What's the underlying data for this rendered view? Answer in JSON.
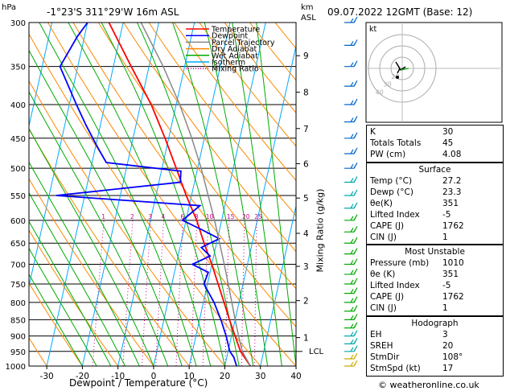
{
  "header": {
    "pressure_unit": "hPa",
    "location": "-1°23'S 311°29'W 16m ASL",
    "km_label": "km",
    "asl_label": "ASL",
    "datetime": "09.07.2022 12GMT (Base: 12)",
    "mixing_ratio_axis": "Mixing Ratio (g/kg)",
    "xlabel": "Dewpoint / Temperature (°C)",
    "lcl": "LCL",
    "footer": "© weatheronline.co.uk"
  },
  "legend": {
    "items": [
      {
        "label": "Temperature",
        "color": "#ff0000",
        "dash": "solid"
      },
      {
        "label": "Dewpoint",
        "color": "#0000ff",
        "dash": "solid"
      },
      {
        "label": "Parcel Trajectory",
        "color": "#888888",
        "dash": "solid"
      },
      {
        "label": "Dry Adiabat",
        "color": "#ff8800",
        "dash": "solid"
      },
      {
        "label": "Wet Adiabat",
        "color": "#00aa00",
        "dash": "solid"
      },
      {
        "label": "Isotherm",
        "color": "#00aaff",
        "dash": "solid"
      },
      {
        "label": "Mixing Ratio",
        "color": "#cc0088",
        "dash": "dotted"
      }
    ]
  },
  "chart_data": {
    "type": "line",
    "title": "",
    "xlabel": "Dewpoint / Temperature (°C)",
    "ylabel": "hPa",
    "xlim": [
      -35,
      40
    ],
    "ylim": [
      1000,
      300
    ],
    "x_ticks": [
      -30,
      -20,
      -10,
      0,
      10,
      20,
      30,
      40
    ],
    "pressure_levels": [
      300,
      350,
      400,
      450,
      500,
      550,
      600,
      650,
      700,
      750,
      800,
      850,
      900,
      950,
      1000
    ],
    "km_ticks": [
      {
        "km": "1",
        "p": 905
      },
      {
        "km": "2",
        "p": 795
      },
      {
        "km": "3",
        "p": 705
      },
      {
        "km": "4",
        "p": 628
      },
      {
        "km": "5",
        "p": 555
      },
      {
        "km": "6",
        "p": 492
      },
      {
        "km": "7",
        "p": 435
      },
      {
        "km": "8",
        "p": 383
      },
      {
        "km": "9",
        "p": 337
      }
    ],
    "mixing_ratio_labels": [
      "1",
      "2",
      "3",
      "4",
      "6",
      "8",
      "10",
      "15",
      "20",
      "25"
    ],
    "lcl_pressure": 950,
    "series": [
      {
        "name": "Temperature",
        "color": "#ff0000",
        "points": [
          [
            1000,
            27.2
          ],
          [
            950,
            23.5
          ],
          [
            900,
            21
          ],
          [
            850,
            18.4
          ],
          [
            800,
            15.8
          ],
          [
            750,
            13
          ],
          [
            700,
            10
          ],
          [
            650,
            6.5
          ],
          [
            600,
            3
          ],
          [
            550,
            -1.5
          ],
          [
            500,
            -6
          ],
          [
            450,
            -11
          ],
          [
            400,
            -17
          ],
          [
            350,
            -25
          ],
          [
            300,
            -34
          ]
        ]
      },
      {
        "name": "Dewpoint",
        "color": "#0000ff",
        "points": [
          [
            1000,
            23.3
          ],
          [
            970,
            22
          ],
          [
            950,
            20.5
          ],
          [
            900,
            18.5
          ],
          [
            850,
            16
          ],
          [
            800,
            13
          ],
          [
            750,
            9
          ],
          [
            720,
            9.5
          ],
          [
            700,
            4.5
          ],
          [
            680,
            9
          ],
          [
            660,
            6
          ],
          [
            640,
            10.5
          ],
          [
            620,
            5
          ],
          [
            600,
            -1
          ],
          [
            570,
            3
          ],
          [
            550,
            -38
          ],
          [
            525,
            -4
          ],
          [
            505,
            -4.5
          ],
          [
            490,
            -26
          ],
          [
            460,
            -30
          ],
          [
            430,
            -34
          ],
          [
            400,
            -38
          ],
          [
            350,
            -45
          ],
          [
            315,
            -42
          ],
          [
            300,
            -40
          ]
        ]
      },
      {
        "name": "Parcel Trajectory",
        "color": "#888888",
        "points": [
          [
            1000,
            27.2
          ],
          [
            950,
            24
          ],
          [
            900,
            22
          ],
          [
            850,
            20
          ],
          [
            800,
            18
          ],
          [
            700,
            13.5
          ],
          [
            600,
            8
          ],
          [
            500,
            1
          ],
          [
            450,
            -3.5
          ],
          [
            400,
            -9
          ],
          [
            350,
            -16
          ],
          [
            300,
            -25
          ]
        ]
      }
    ]
  },
  "hodograph": {
    "label": "kt",
    "ring_labels": [
      "20",
      "30",
      "40"
    ]
  },
  "indices": {
    "top": [
      {
        "key": "K",
        "value": "30"
      },
      {
        "key": "Totals Totals",
        "value": "45"
      },
      {
        "key": "PW (cm)",
        "value": "4.08"
      }
    ],
    "surface": {
      "title": "Surface",
      "rows": [
        {
          "key": "Temp (°C)",
          "value": "27.2"
        },
        {
          "key": "Dewp (°C)",
          "value": "23.3"
        },
        {
          "key": "θe(K)",
          "value": "351"
        },
        {
          "key": "Lifted Index",
          "value": "-5"
        },
        {
          "key": "CAPE (J)",
          "value": "1762"
        },
        {
          "key": "CIN (J)",
          "value": "1"
        }
      ]
    },
    "unstable": {
      "title": "Most Unstable",
      "rows": [
        {
          "key": "Pressure (mb)",
          "value": "1010"
        },
        {
          "key": "θe (K)",
          "value": "351"
        },
        {
          "key": "Lifted Index",
          "value": "-5"
        },
        {
          "key": "CAPE (J)",
          "value": "1762"
        },
        {
          "key": "CIN (J)",
          "value": "1"
        }
      ]
    },
    "hodo": {
      "title": "Hodograph",
      "rows": [
        {
          "key": "EH",
          "value": "3"
        },
        {
          "key": "SREH",
          "value": "20"
        },
        {
          "key": "StmDir",
          "value": "108°"
        },
        {
          "key": "StmSpd (kt)",
          "value": "17"
        }
      ]
    }
  }
}
